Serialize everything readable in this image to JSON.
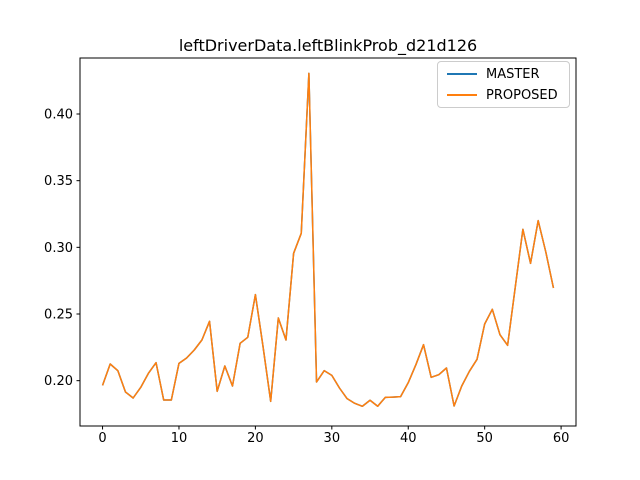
{
  "window": {
    "background": "#ffffff"
  },
  "chart": {
    "title": "leftDriverData.leftBlinkProb_d21d126"
  },
  "legend": {
    "position": "upper right",
    "items": [
      {
        "label": "MASTER",
        "color": "#1f77b4"
      },
      {
        "label": "PROPOSED",
        "color": "#ff7f0e"
      }
    ]
  },
  "chart_data": {
    "type": "line",
    "title": "leftDriverData.leftBlinkProb_d21d126",
    "xlabel": "",
    "ylabel": "",
    "grid": false,
    "legend_position": "upper right",
    "xlim": [
      -2.95,
      61.95
    ],
    "ylim": [
      0.166,
      0.442
    ],
    "xtick_labels": [
      "0",
      "10",
      "20",
      "30",
      "40",
      "50",
      "60"
    ],
    "xtick_values": [
      0,
      10,
      20,
      30,
      40,
      50,
      60
    ],
    "ytick_labels": [
      "0.20",
      "0.25",
      "0.30",
      "0.35",
      "0.40"
    ],
    "ytick_values": [
      0.2,
      0.25,
      0.3,
      0.35,
      0.4
    ],
    "x": [
      0,
      1,
      2,
      3,
      4,
      5,
      6,
      7,
      8,
      9,
      10,
      11,
      12,
      13,
      14,
      15,
      16,
      17,
      18,
      19,
      20,
      21,
      22,
      23,
      24,
      25,
      26,
      27,
      28,
      29,
      30,
      31,
      32,
      33,
      34,
      35,
      36,
      37,
      38,
      39,
      40,
      41,
      42,
      43,
      44,
      45,
      46,
      47,
      48,
      49,
      50,
      51,
      52,
      53,
      54,
      55,
      56,
      57,
      58,
      59
    ],
    "series": [
      {
        "name": "MASTER",
        "color": "#1f77b4",
        "values": [
          0.1965,
          0.2125,
          0.2075,
          0.1915,
          0.187,
          0.195,
          0.2055,
          0.2135,
          0.1855,
          0.1855,
          0.213,
          0.217,
          0.223,
          0.2305,
          0.2445,
          0.192,
          0.211,
          0.196,
          0.228,
          0.2325,
          0.2645,
          0.2255,
          0.1845,
          0.247,
          0.2305,
          0.2955,
          0.3105,
          0.4305,
          0.199,
          0.2075,
          0.204,
          0.1945,
          0.1865,
          0.183,
          0.1808,
          0.1853,
          0.1808,
          0.1875,
          0.1877,
          0.188,
          0.1985,
          0.212,
          0.227,
          0.2025,
          0.2045,
          0.2095,
          0.181,
          0.196,
          0.207,
          0.216,
          0.2425,
          0.2535,
          0.2345,
          0.2265,
          0.27,
          0.3135,
          0.288,
          0.32,
          0.2965,
          0.2695
        ]
      },
      {
        "name": "PROPOSED",
        "color": "#ff7f0e",
        "values": [
          0.1965,
          0.2125,
          0.2075,
          0.1915,
          0.187,
          0.195,
          0.2055,
          0.2135,
          0.1855,
          0.1855,
          0.213,
          0.217,
          0.223,
          0.2305,
          0.2445,
          0.192,
          0.211,
          0.196,
          0.228,
          0.2325,
          0.2645,
          0.2255,
          0.1845,
          0.247,
          0.2305,
          0.2955,
          0.3105,
          0.4305,
          0.199,
          0.2075,
          0.204,
          0.1945,
          0.1865,
          0.183,
          0.1808,
          0.1853,
          0.1808,
          0.1875,
          0.1877,
          0.188,
          0.1985,
          0.212,
          0.227,
          0.2025,
          0.2045,
          0.2095,
          0.181,
          0.196,
          0.207,
          0.216,
          0.2425,
          0.2535,
          0.2345,
          0.2265,
          0.27,
          0.3135,
          0.288,
          0.32,
          0.2965,
          0.2695
        ]
      }
    ]
  }
}
